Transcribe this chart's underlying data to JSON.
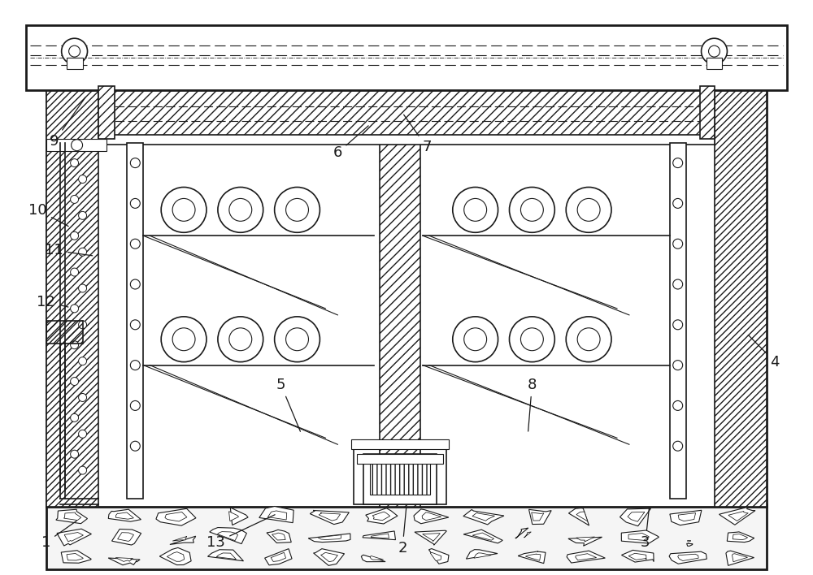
{
  "bg_color": "#ffffff",
  "line_color": "#1a1a1a",
  "fig_width": 10.0,
  "fig_height": 7.08,
  "label_positions": {
    "1": [
      0.055,
      0.945,
      0.095,
      0.905
    ],
    "13": [
      0.265,
      0.945,
      0.34,
      0.895
    ],
    "2": [
      0.495,
      0.955,
      0.5,
      0.88
    ],
    "3": [
      0.795,
      0.945,
      0.8,
      0.88
    ],
    "4": [
      0.955,
      0.63,
      0.92,
      0.58
    ],
    "5": [
      0.345,
      0.67,
      0.37,
      0.755
    ],
    "8": [
      0.655,
      0.67,
      0.65,
      0.755
    ],
    "6": [
      0.415,
      0.265,
      0.455,
      0.215
    ],
    "7": [
      0.525,
      0.255,
      0.495,
      0.195
    ],
    "9": [
      0.065,
      0.245,
      0.105,
      0.165
    ],
    "10": [
      0.045,
      0.365,
      0.085,
      0.395
    ],
    "11": [
      0.065,
      0.435,
      0.115,
      0.445
    ],
    "12": [
      0.055,
      0.525,
      0.085,
      0.535
    ]
  }
}
